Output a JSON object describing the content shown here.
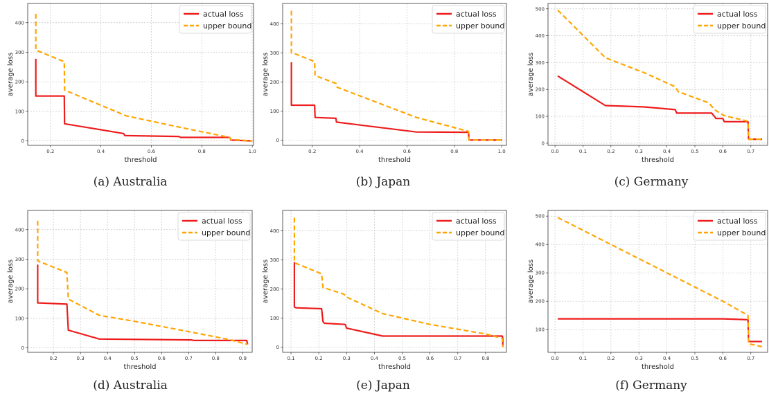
{
  "legend": {
    "actual_label": "actual loss",
    "bound_label": "upper bound",
    "placement": "top-right"
  },
  "colors": {
    "actual": "#ee1c1c",
    "bound": "#ffa500",
    "grid": "#c4c4c4",
    "axis": "#333333"
  },
  "chart_data": [
    {
      "type": "line",
      "caption": "(a)  Australia",
      "xlabel": "threshold",
      "ylabel": "average loss",
      "xlim": [
        0.11,
        1.005
      ],
      "ylim": [
        -15,
        465
      ],
      "xticks": [
        0.2,
        0.4,
        0.6,
        0.8,
        1.0
      ],
      "xticklabels": [
        "0.2",
        "0.4",
        "0.6",
        "0.8",
        "1.0"
      ],
      "yticks": [
        0,
        100,
        200,
        300,
        400
      ],
      "yticklabels": [
        "0",
        "100",
        "200",
        "300",
        "400"
      ],
      "grid": true,
      "series": [
        {
          "name": "actual loss",
          "style": "solid",
          "x": [
            0.142,
            0.142,
            0.148,
            0.255,
            0.256,
            0.49,
            0.495,
            0.71,
            0.715,
            0.91,
            0.915,
            1.0
          ],
          "y": [
            278,
            152,
            152,
            152,
            58,
            25,
            18,
            15,
            12,
            12,
            3,
            0
          ]
        },
        {
          "name": "upper bound",
          "style": "dashed",
          "x": [
            0.142,
            0.142,
            0.148,
            0.255,
            0.256,
            0.5,
            0.72,
            0.91,
            0.915,
            1.0
          ],
          "y": [
            430,
            308,
            305,
            268,
            172,
            85,
            45,
            12,
            5,
            0
          ]
        }
      ]
    },
    {
      "type": "line",
      "caption": "(b)  Japan",
      "xlabel": "threshold",
      "ylabel": "average loss",
      "xlim": [
        0.075,
        1.02
      ],
      "ylim": [
        -18,
        470
      ],
      "xticks": [
        0.2,
        0.4,
        0.6,
        0.8,
        1.0
      ],
      "xticklabels": [
        "0.2",
        "0.4",
        "0.6",
        "0.8",
        "1.0"
      ],
      "yticks": [
        0,
        100,
        200,
        300,
        400
      ],
      "yticklabels": [
        "0",
        "100",
        "200",
        "300",
        "400"
      ],
      "grid": true,
      "series": [
        {
          "name": "actual loss",
          "style": "solid",
          "x": [
            0.112,
            0.112,
            0.118,
            0.21,
            0.212,
            0.3,
            0.302,
            0.64,
            0.86,
            0.862,
            1.0
          ],
          "y": [
            268,
            120,
            120,
            120,
            78,
            75,
            62,
            28,
            27,
            0,
            0
          ]
        },
        {
          "name": "upper bound",
          "style": "dashed",
          "x": [
            0.112,
            0.112,
            0.118,
            0.21,
            0.212,
            0.3,
            0.305,
            0.64,
            0.86,
            0.862,
            1.0
          ],
          "y": [
            445,
            300,
            300,
            270,
            222,
            195,
            182,
            78,
            30,
            0,
            0
          ]
        }
      ]
    },
    {
      "type": "line",
      "caption": "(c)  Germany",
      "xlabel": "threshold",
      "ylabel": "average loss",
      "xlim": [
        -0.025,
        0.76
      ],
      "ylim": [
        -8,
        520
      ],
      "xticks": [
        0.0,
        0.1,
        0.2,
        0.3,
        0.4,
        0.5,
        0.6,
        0.7
      ],
      "xticklabels": [
        "0.0",
        "0.1",
        "0.2",
        "0.3",
        "0.4",
        "0.5",
        "0.6",
        "0.7"
      ],
      "yticks": [
        0,
        100,
        200,
        300,
        400,
        500
      ],
      "yticklabels": [
        "0",
        "100",
        "200",
        "300",
        "400",
        "500"
      ],
      "grid": true,
      "series": [
        {
          "name": "actual loss",
          "style": "solid",
          "x": [
            0.01,
            0.18,
            0.32,
            0.43,
            0.435,
            0.56,
            0.57,
            0.575,
            0.6,
            0.605,
            0.69,
            0.692,
            0.74
          ],
          "y": [
            250,
            140,
            135,
            125,
            112,
            112,
            100,
            92,
            92,
            80,
            80,
            15,
            15
          ]
        },
        {
          "name": "upper bound",
          "style": "dashed",
          "x": [
            0.01,
            0.18,
            0.32,
            0.43,
            0.44,
            0.55,
            0.57,
            0.6,
            0.615,
            0.69,
            0.692,
            0.74
          ],
          "y": [
            495,
            318,
            262,
            210,
            192,
            150,
            125,
            105,
            100,
            82,
            15,
            15
          ]
        }
      ]
    },
    {
      "type": "line",
      "caption": "(d)  Australia",
      "xlabel": "threshold",
      "ylabel": "average loss",
      "xlim": [
        0.105,
        0.935
      ],
      "ylim": [
        -15,
        465
      ],
      "xticks": [
        0.2,
        0.3,
        0.4,
        0.5,
        0.6,
        0.7,
        0.8,
        0.9
      ],
      "xticklabels": [
        "0.2",
        "0.3",
        "0.4",
        "0.5",
        "0.6",
        "0.7",
        "0.8",
        "0.9"
      ],
      "yticks": [
        0,
        100,
        200,
        300,
        400
      ],
      "yticklabels": [
        "0",
        "100",
        "200",
        "300",
        "400"
      ],
      "grid": true,
      "series": [
        {
          "name": "actual loss",
          "style": "solid",
          "x": [
            0.142,
            0.142,
            0.148,
            0.25,
            0.255,
            0.37,
            0.71,
            0.72,
            0.915,
            0.918
          ],
          "y": [
            282,
            152,
            152,
            148,
            60,
            30,
            27,
            25,
            25,
            12
          ]
        },
        {
          "name": "upper bound",
          "style": "dashed",
          "x": [
            0.142,
            0.142,
            0.148,
            0.25,
            0.255,
            0.37,
            0.5,
            0.7,
            0.85,
            0.918
          ],
          "y": [
            430,
            295,
            292,
            255,
            165,
            110,
            90,
            55,
            28,
            12
          ]
        }
      ]
    },
    {
      "type": "line",
      "caption": "(e)  Japan",
      "xlabel": "threshold",
      "ylabel": "average loss",
      "xlim": [
        0.07,
        0.875
      ],
      "ylim": [
        -18,
        470
      ],
      "xticks": [
        0.1,
        0.2,
        0.3,
        0.4,
        0.5,
        0.6,
        0.7,
        0.8
      ],
      "xticklabels": [
        "0.1",
        "0.2",
        "0.3",
        "0.4",
        "0.5",
        "0.6",
        "0.7",
        "0.8"
      ],
      "yticks": [
        0,
        100,
        200,
        300,
        400
      ],
      "yticklabels": [
        "0",
        "100",
        "200",
        "300",
        "400"
      ],
      "grid": true,
      "series": [
        {
          "name": "actual loss",
          "style": "solid",
          "x": [
            0.112,
            0.112,
            0.118,
            0.21,
            0.215,
            0.22,
            0.295,
            0.3,
            0.43,
            0.8,
            0.86,
            0.862,
            0.862
          ],
          "y": [
            292,
            138,
            135,
            132,
            88,
            82,
            78,
            65,
            38,
            38,
            38,
            30,
            0
          ]
        },
        {
          "name": "upper bound",
          "style": "dashed",
          "x": [
            0.112,
            0.112,
            0.118,
            0.21,
            0.215,
            0.29,
            0.3,
            0.43,
            0.6,
            0.8,
            0.86,
            0.862
          ],
          "y": [
            445,
            292,
            288,
            252,
            205,
            182,
            172,
            115,
            78,
            45,
            30,
            0
          ]
        }
      ]
    },
    {
      "type": "line",
      "caption": "(f)  Germany",
      "xlabel": "threshold",
      "ylabel": "average loss",
      "xlim": [
        -0.025,
        0.76
      ],
      "ylim": [
        20,
        520
      ],
      "xticks": [
        0.0,
        0.1,
        0.2,
        0.3,
        0.4,
        0.5,
        0.6,
        0.7
      ],
      "xticklabels": [
        "0.0",
        "0.1",
        "0.2",
        "0.3",
        "0.4",
        "0.5",
        "0.6",
        "0.7"
      ],
      "yticks": [
        100,
        200,
        300,
        400,
        500
      ],
      "yticklabels": [
        "100",
        "200",
        "300",
        "400",
        "500"
      ],
      "grid": true,
      "series": [
        {
          "name": "actual loss",
          "style": "solid",
          "x": [
            0.01,
            0.6,
            0.69,
            0.692,
            0.74
          ],
          "y": [
            138,
            138,
            135,
            58,
            58
          ]
        },
        {
          "name": "upper bound",
          "style": "dashed",
          "x": [
            0.01,
            0.6,
            0.69,
            0.692,
            0.74
          ],
          "y": [
            495,
            200,
            150,
            50,
            40
          ]
        }
      ]
    }
  ]
}
